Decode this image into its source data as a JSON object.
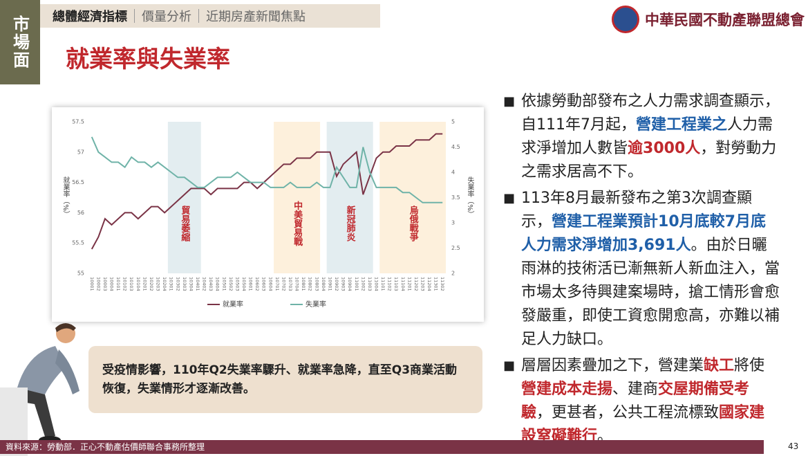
{
  "side_tab": "市場面",
  "nav": [
    "總體經濟指標",
    "價量分析",
    "近期房產新聞焦點"
  ],
  "logo": "中華民國不動產聯盟總會",
  "title": "就業率與失業率",
  "chart_data": {
    "type": "line",
    "categories": [
      "10001",
      "10002",
      "10003",
      "10004",
      "10101",
      "10102",
      "10103",
      "10104",
      "10201",
      "10202",
      "10203",
      "10204",
      "10301",
      "10302",
      "10303",
      "10304",
      "10401",
      "10402",
      "10403",
      "10404",
      "10501",
      "10502",
      "10503",
      "10504",
      "10601",
      "10602",
      "10603",
      "10604",
      "10701",
      "10702",
      "10703",
      "10704",
      "10801",
      "10802",
      "10803",
      "10804",
      "10901",
      "10902",
      "10903",
      "10904",
      "11001",
      "11002",
      "11003",
      "11004",
      "11101",
      "11102",
      "11103",
      "11104",
      "11201",
      "11202",
      "11203",
      "11204",
      "11301",
      "11302"
    ],
    "series": [
      {
        "name": "就業率",
        "color": "#7a3346",
        "values": [
          55.4,
          55.6,
          55.9,
          55.8,
          55.9,
          56.0,
          56.0,
          55.9,
          56.0,
          56.1,
          56.1,
          56.0,
          56.1,
          56.2,
          56.3,
          56.4,
          56.4,
          56.4,
          56.3,
          56.4,
          56.4,
          56.4,
          56.4,
          56.5,
          56.5,
          56.4,
          56.5,
          56.6,
          56.7,
          56.8,
          56.8,
          56.9,
          56.9,
          56.9,
          57.0,
          57.0,
          57.0,
          56.6,
          56.8,
          56.9,
          57.0,
          56.3,
          56.6,
          56.9,
          57.0,
          57.0,
          57.1,
          57.1,
          57.1,
          57.2,
          57.2,
          57.2,
          57.3,
          57.3
        ]
      },
      {
        "name": "失業率",
        "color": "#6fb3a8",
        "axis": "y2",
        "values": [
          4.7,
          4.4,
          4.3,
          4.2,
          4.2,
          4.1,
          4.3,
          4.2,
          4.2,
          4.1,
          4.2,
          4.1,
          4.0,
          3.9,
          3.9,
          3.8,
          3.7,
          3.7,
          3.8,
          3.9,
          3.9,
          3.9,
          4.0,
          3.9,
          3.8,
          3.8,
          3.8,
          3.7,
          3.7,
          3.7,
          3.8,
          3.7,
          3.7,
          3.7,
          3.8,
          3.7,
          3.7,
          4.1,
          3.9,
          3.7,
          3.7,
          4.5,
          4.0,
          3.7,
          3.7,
          3.7,
          3.7,
          3.6,
          3.6,
          3.5,
          3.4,
          3.4,
          3.4,
          3.4
        ]
      }
    ],
    "ylim": [
      55,
      57.5
    ],
    "yticks": [
      55,
      55.5,
      56,
      56.5,
      57,
      57.5
    ],
    "y2lim": [
      2,
      5
    ],
    "y2ticks": [
      2,
      2.5,
      3,
      3.5,
      4,
      4.5,
      5
    ],
    "ylabel": "就業率（%）",
    "y2label": "失業率（%）",
    "annotations": [
      "貿易萎縮",
      "中美貿易戰",
      "新冠肺炎",
      "烏俄戰爭"
    ]
  },
  "callout": "受疫情影響，110年Q2失業率驟升、就業率急降，直至Q3商業活動恢復，失業情形才逐漸改善。",
  "bullets": [
    {
      "segments": [
        {
          "text": "依據勞動部發布之人力需求調查顯示，自111年7月起，"
        },
        {
          "text": "營建工程業之",
          "color": "#1f5fa8"
        },
        {
          "text": "人力需求淨增加人數皆"
        },
        {
          "text": "逾3000人",
          "color": "#c0282d"
        },
        {
          "text": "，對勞動力之需求居高不下。"
        }
      ]
    },
    {
      "segments": [
        {
          "text": "113年8月最新發布之第3次調查顯示，"
        },
        {
          "text": "營建工程業預計10月底較7月底人力需求淨增加3,691人",
          "color": "#1f5fa8"
        },
        {
          "text": "。由於日曬雨淋的技術活已漸無新人新血注入，當市場太多待興建案場時，搶工情形會愈發嚴重，即使工資愈開愈高，亦難以補足人力缺口。"
        }
      ]
    },
    {
      "segments": [
        {
          "text": "層層因素疊加之下，營建業"
        },
        {
          "text": "缺工",
          "color": "#c0282d"
        },
        {
          "text": "將使"
        },
        {
          "text": "營建成本走揚",
          "color": "#c0282d"
        },
        {
          "text": "、建商"
        },
        {
          "text": "交屋期備受考驗",
          "color": "#c0282d"
        },
        {
          "text": "，更甚者，公共工程流標致"
        },
        {
          "text": "國家建設窒礙難行",
          "color": "#c0282d"
        },
        {
          "text": "。"
        }
      ]
    }
  ],
  "footer": "資料來源：勞動部．正心不動產估價師聯合事務所整理",
  "page": "43"
}
